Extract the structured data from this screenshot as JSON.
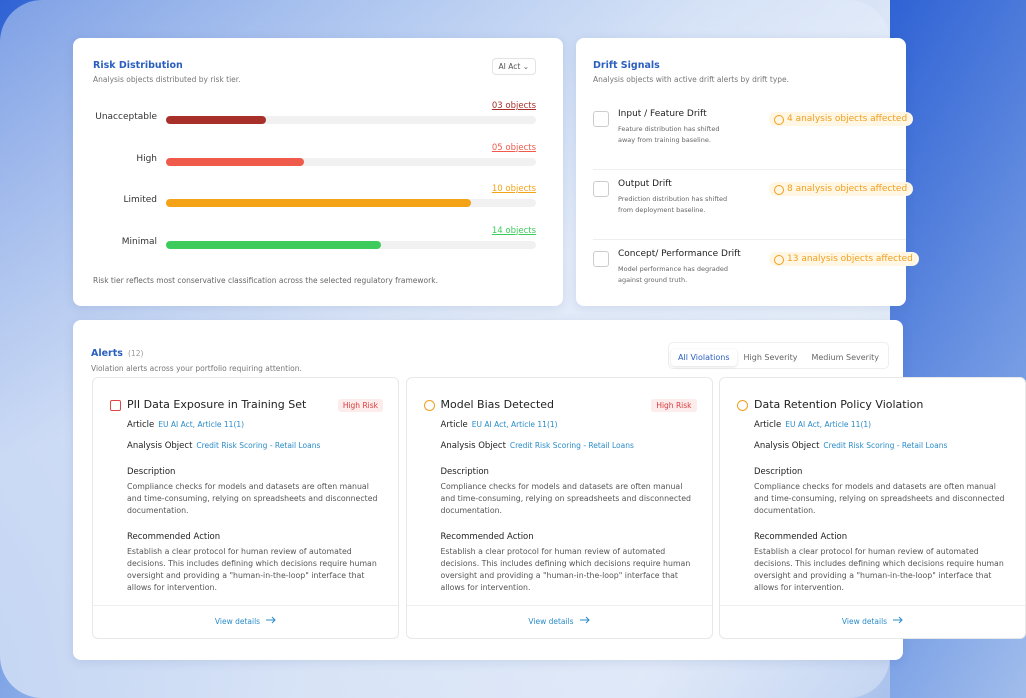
{
  "risk": {
    "title": "Risk Distribution",
    "subtitle": "Analysis objects distributed by risk tier.",
    "dropdown": "AI Act",
    "tiers": [
      {
        "label": "Unacceptable",
        "count": "03 objects"
      },
      {
        "label": "High",
        "count": "05 objects"
      },
      {
        "label": "Limited",
        "count": "10 objects"
      },
      {
        "label": "Minimal",
        "count": "14 objects"
      }
    ],
    "footnote": "Risk tier reflects most conservative classification across the selected regulatory framework."
  },
  "drift": {
    "title": "Drift Signals",
    "subtitle": "Analysis objects with active drift alerts by drift type.",
    "items": [
      {
        "title": "Input / Feature Drift",
        "description": "Feature distribution has shifted away from training baseline.",
        "badge": "4 analysis objects affected"
      },
      {
        "title": "Output Drift",
        "description": "Prediction distribution has shifted from deployment baseline.",
        "badge": "8 analysis objects affected"
      },
      {
        "title": "Concept/ Performance Drift",
        "description": "Model performance has degraded against ground truth.",
        "badge": "13 analysis objects affected"
      }
    ]
  },
  "alerts": {
    "title": "Alerts",
    "count": "(12)",
    "subtitle": "Violation alerts across your portfolio requiring attention.",
    "tabs": [
      "All Violations",
      "High Severity",
      "Medium Severity"
    ],
    "cards": [
      {
        "title": "PII Data Exposure in Training Set",
        "severity": "High Risk",
        "article_label": "Article",
        "article": "EU AI Act, Article 11(1)",
        "object_label": "Analysis Object",
        "object": "Credit Risk Scoring - Retail Loans",
        "description_label": "Description",
        "description": "Compliance checks for models and datasets are often manual and time-consuming, relying on spreadsheets and disconnected documentation.",
        "action_label": "Recommended Action",
        "action": "Establish a clear protocol for human review of automated decisions. This includes defining which decisions require human oversight and providing a \"human-in-the-loop\" interface that allows for intervention.",
        "link": "View details"
      },
      {
        "title": "Model Bias Detected",
        "severity": "High Risk",
        "article_label": "Article",
        "article": "EU AI Act, Article 11(1)",
        "object_label": "Analysis Object",
        "object": "Credit Risk Scoring - Retail Loans",
        "description_label": "Description",
        "description": "Compliance checks for models and datasets are often manual and time-consuming, relying on spreadsheets and disconnected documentation.",
        "action_label": "Recommended Action",
        "action": "Establish a clear protocol for human review of automated decisions. This includes defining which decisions require human oversight and providing a \"human-in-the-loop\" interface that allows for intervention.",
        "link": "View details"
      },
      {
        "title": "Data Retention Policy Violation",
        "article_label": "Article",
        "article": "EU AI Act, Article 11(1)",
        "object_label": "Analysis Object",
        "object": "Credit Risk Scoring - Retail Loans",
        "description_label": "Description",
        "description": "Compliance checks for models and datasets are often manual and time-consuming, relying on spreadsheets and disconnected documentation.",
        "action_label": "Recommended Action",
        "action": "Establish a clear protocol for human review of automated decisions. This includes defining which decisions require human oversight and providing a \"human-in-the-loop\" interface that allows for intervention.",
        "link": "View details"
      }
    ]
  }
}
